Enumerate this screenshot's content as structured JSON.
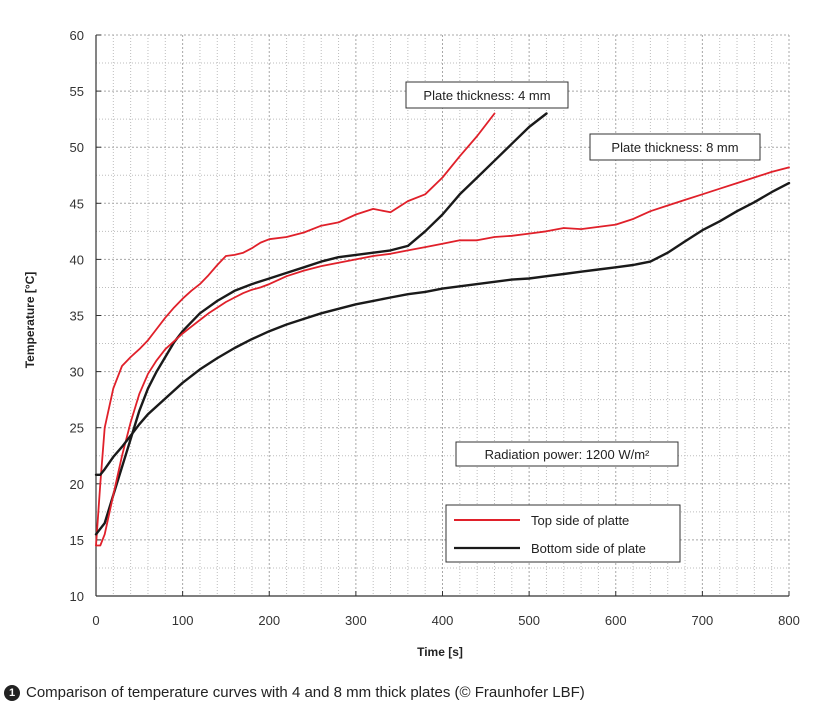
{
  "chart_data": {
    "type": "line",
    "xlabel": "Time [s]",
    "ylabel": "Temperature [°C]",
    "xlim": [
      0,
      800
    ],
    "ylim": [
      10,
      60
    ],
    "xticks": [
      0,
      100,
      200,
      300,
      400,
      500,
      600,
      700,
      800
    ],
    "yticks": [
      10,
      15,
      20,
      25,
      30,
      35,
      40,
      45,
      50,
      55,
      60
    ],
    "grid": true,
    "legend_position": "lower-right",
    "colors": {
      "top": "#e0202a",
      "bottom": "#1a1a1a"
    },
    "legend": [
      {
        "label": "Top side of platte",
        "color": "#e0202a"
      },
      {
        "label": "Bottom side of plate",
        "color": "#1a1a1a"
      }
    ],
    "annotations": {
      "thickness_4mm": "Plate thickness: 4 mm",
      "thickness_8mm": "Plate thickness: 8 mm",
      "radiation": "Radiation power: 1200 W/m²"
    },
    "series": [
      {
        "legend_ref": "Top side of platte",
        "plate": "4 mm",
        "x": [
          0,
          5,
          10,
          20,
          30,
          40,
          50,
          60,
          70,
          80,
          90,
          100,
          110,
          120,
          130,
          140,
          150,
          160,
          170,
          180,
          190,
          200,
          220,
          240,
          260,
          280,
          300,
          320,
          340,
          360,
          380,
          400,
          420,
          440,
          460
        ],
        "y": [
          14.5,
          20,
          25,
          28.5,
          30.5,
          31.3,
          32,
          32.8,
          33.8,
          34.8,
          35.7,
          36.5,
          37.2,
          37.8,
          38.6,
          39.5,
          40.3,
          40.4,
          40.6,
          41,
          41.5,
          41.8,
          42,
          42.4,
          43,
          43.3,
          44,
          44.5,
          44.2,
          45.2,
          45.8,
          47.3,
          49.2,
          51,
          53
        ]
      },
      {
        "legend_ref": "Bottom side of plate",
        "plate": "4 mm",
        "x": [
          0,
          10,
          20,
          30,
          40,
          50,
          60,
          70,
          80,
          90,
          100,
          120,
          140,
          160,
          180,
          200,
          220,
          240,
          260,
          280,
          300,
          320,
          340,
          360,
          380,
          400,
          420,
          440,
          460,
          480,
          500,
          520
        ],
        "y": [
          15.5,
          16.5,
          19,
          21.5,
          24,
          26.5,
          28.5,
          30,
          31.3,
          32.6,
          33.6,
          35.2,
          36.3,
          37.2,
          37.8,
          38.3,
          38.8,
          39.3,
          39.8,
          40.2,
          40.4,
          40.6,
          40.8,
          41.2,
          42.5,
          44,
          45.8,
          47.3,
          48.8,
          50.3,
          51.8,
          53
        ]
      },
      {
        "legend_ref": "Top side of platte",
        "plate": "8 mm",
        "x": [
          0,
          5,
          10,
          20,
          30,
          40,
          50,
          60,
          70,
          80,
          90,
          100,
          110,
          120,
          130,
          140,
          150,
          160,
          170,
          180,
          190,
          200,
          220,
          240,
          260,
          280,
          300,
          320,
          340,
          360,
          380,
          400,
          420,
          440,
          460,
          480,
          500,
          520,
          540,
          560,
          580,
          600,
          620,
          640,
          660,
          680,
          700,
          720,
          740,
          760,
          780,
          800
        ],
        "y": [
          14.5,
          14.5,
          15.5,
          19,
          22.5,
          25.5,
          28,
          29.8,
          31,
          32,
          32.7,
          33.4,
          34,
          34.6,
          35.2,
          35.7,
          36.2,
          36.6,
          37,
          37.3,
          37.5,
          37.8,
          38.5,
          39,
          39.4,
          39.7,
          40,
          40.3,
          40.5,
          40.8,
          41.1,
          41.4,
          41.7,
          41.7,
          42,
          42.1,
          42.3,
          42.5,
          42.8,
          42.7,
          42.9,
          43.1,
          43.6,
          44.3,
          44.8,
          45.3,
          45.8,
          46.3,
          46.8,
          47.3,
          47.8,
          48.2
        ]
      },
      {
        "legend_ref": "Bottom side of plate",
        "plate": "8 mm",
        "x": [
          0,
          5,
          10,
          20,
          30,
          40,
          50,
          60,
          80,
          100,
          120,
          140,
          160,
          180,
          200,
          220,
          240,
          260,
          280,
          300,
          320,
          340,
          360,
          380,
          400,
          420,
          440,
          460,
          480,
          500,
          520,
          540,
          560,
          580,
          600,
          620,
          640,
          660,
          680,
          700,
          720,
          740,
          760,
          780,
          800
        ],
        "y": [
          20.8,
          20.8,
          21.3,
          22.4,
          23.3,
          24.3,
          25.3,
          26.2,
          27.6,
          29,
          30.2,
          31.2,
          32.1,
          32.9,
          33.6,
          34.2,
          34.7,
          35.2,
          35.6,
          36,
          36.3,
          36.6,
          36.9,
          37.1,
          37.4,
          37.6,
          37.8,
          38,
          38.2,
          38.3,
          38.5,
          38.7,
          38.9,
          39.1,
          39.3,
          39.5,
          39.8,
          40.6,
          41.6,
          42.6,
          43.4,
          44.3,
          45.1,
          46,
          46.8
        ]
      }
    ]
  },
  "caption": {
    "badge": "1",
    "text": "Comparison of temperature curves with 4 and 8 mm thick plates (© Fraunhofer LBF)"
  }
}
